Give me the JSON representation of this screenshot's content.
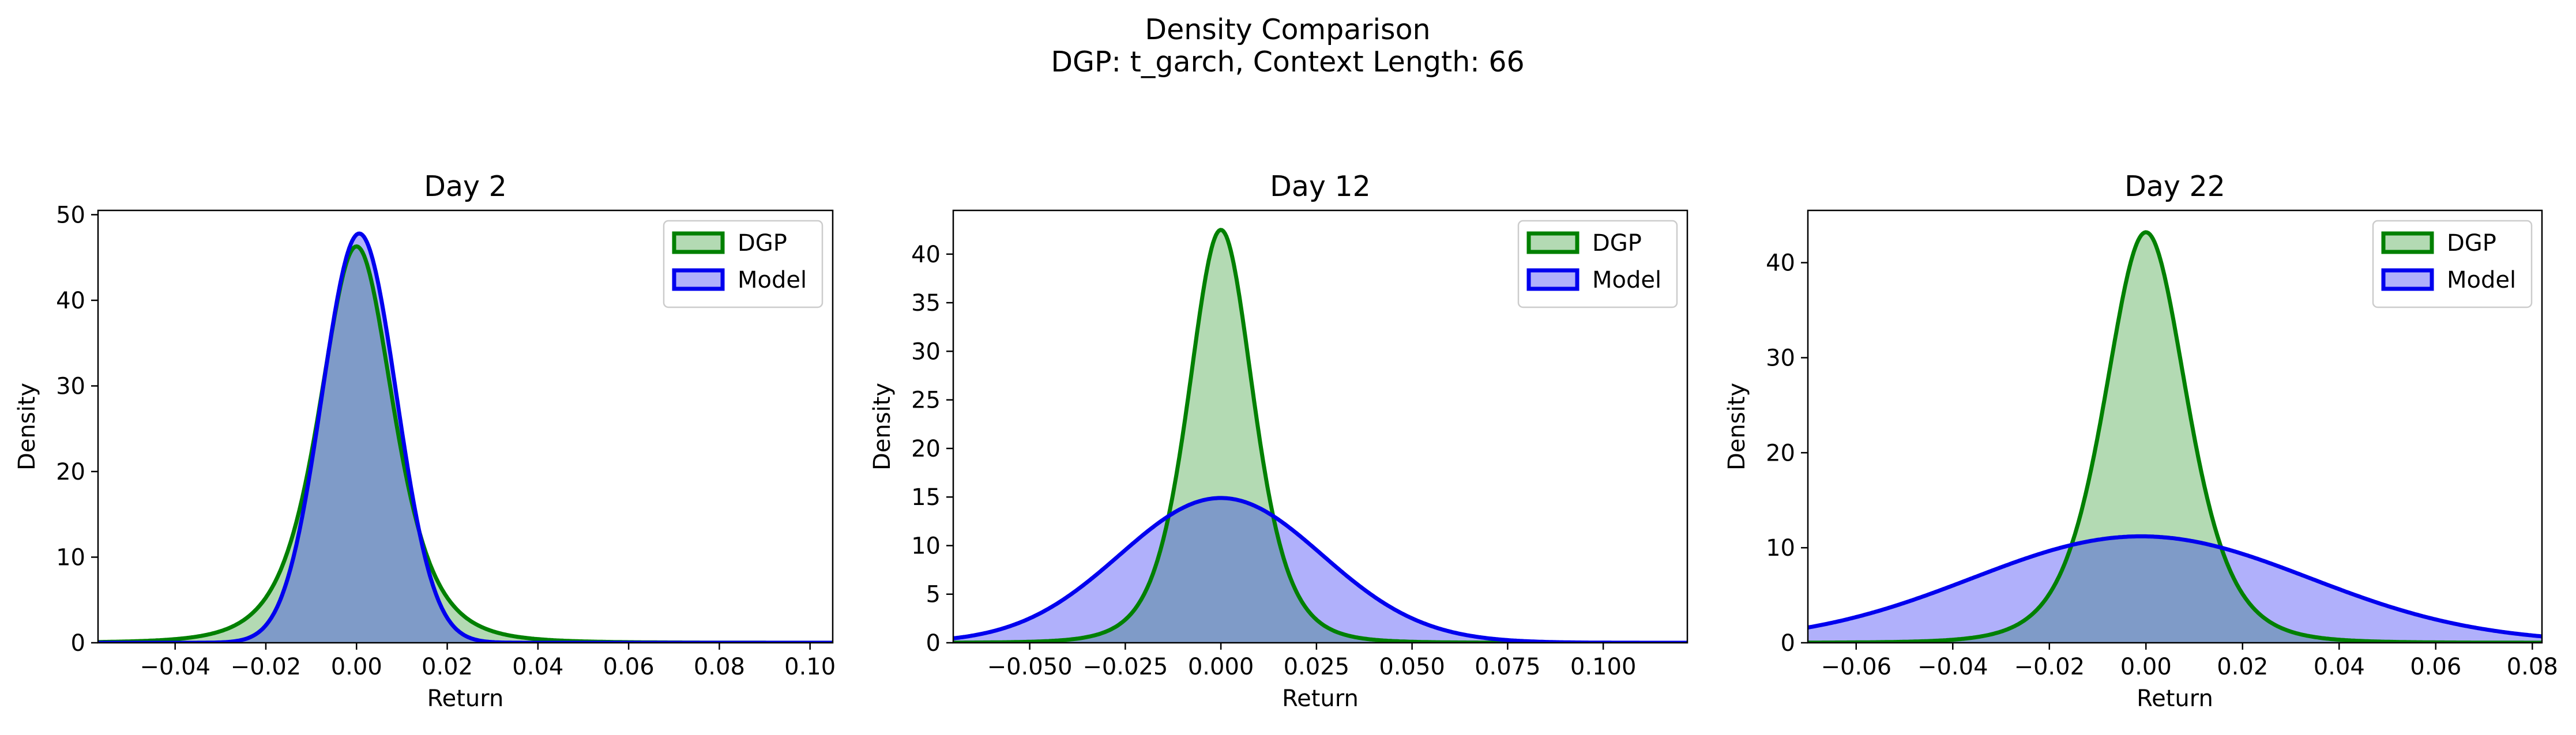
{
  "title": "Density Comparison",
  "subtitle": "DGP: t_garch, Context Length: 66",
  "colors": {
    "dgp_line": "#008000",
    "dgp_fill": "#b3dab3",
    "model_line": "#0000ee",
    "model_fill": "#b0b0fb",
    "overlap_fill": "#7f9bc8"
  },
  "chart_data": [
    {
      "type": "area",
      "title": "Day 2",
      "xlabel": "Return",
      "ylabel": "Density",
      "xlim": [
        -0.057,
        0.105
      ],
      "ylim": [
        0,
        50.5
      ],
      "xticks": [
        -0.04,
        -0.02,
        0.0,
        0.02,
        0.04,
        0.06,
        0.08,
        0.1
      ],
      "xtick_labels": [
        "−0.04",
        "−0.02",
        "0.00",
        "0.02",
        "0.04",
        "0.06",
        "0.08",
        "0.10"
      ],
      "yticks": [
        0,
        10,
        20,
        30,
        40,
        50
      ],
      "ytick_labels": [
        "0",
        "10",
        "20",
        "30",
        "40",
        "50"
      ],
      "legend_position": "top-right",
      "series": [
        {
          "name": "DGP",
          "shape": "student_t",
          "peak": 46.3,
          "center": 0.0,
          "scale": 0.0085,
          "df": 4
        },
        {
          "name": "Model",
          "shape": "gaussian",
          "peak": 47.8,
          "center": 0.0006,
          "sigma": 0.0082
        }
      ]
    },
    {
      "type": "area",
      "title": "Day 12",
      "xlabel": "Return",
      "ylabel": "Density",
      "xlim": [
        -0.07,
        0.122
      ],
      "ylim": [
        0,
        44.5
      ],
      "xticks": [
        -0.05,
        -0.025,
        0.0,
        0.025,
        0.05,
        0.075,
        0.1
      ],
      "xtick_labels": [
        "−0.050",
        "−0.025",
        "0.000",
        "0.025",
        "0.050",
        "0.075",
        "0.100"
      ],
      "yticks": [
        0,
        5,
        10,
        15,
        20,
        25,
        30,
        35,
        40
      ],
      "ytick_labels": [
        "0",
        "5",
        "10",
        "15",
        "20",
        "25",
        "30",
        "35",
        "40"
      ],
      "legend_position": "top-right",
      "series": [
        {
          "name": "DGP",
          "shape": "student_t",
          "peak": 42.5,
          "center": 0.0,
          "scale": 0.0088,
          "df": 5
        },
        {
          "name": "Model",
          "shape": "gaussian",
          "peak": 14.9,
          "center": 0.0,
          "sigma": 0.0265
        }
      ]
    },
    {
      "type": "area",
      "title": "Day 22",
      "xlabel": "Return",
      "ylabel": "Density",
      "xlim": [
        -0.07,
        0.082
      ],
      "ylim": [
        0,
        45.5
      ],
      "xticks": [
        -0.06,
        -0.04,
        -0.02,
        0.0,
        0.02,
        0.04,
        0.06,
        0.08
      ],
      "xtick_labels": [
        "−0.06",
        "−0.04",
        "−0.02",
        "0.00",
        "0.02",
        "0.04",
        "0.06",
        "0.08"
      ],
      "yticks": [
        0,
        10,
        20,
        30,
        40
      ],
      "ytick_labels": [
        "0",
        "10",
        "20",
        "30",
        "40"
      ],
      "legend_position": "top-right",
      "series": [
        {
          "name": "DGP",
          "shape": "student_t",
          "peak": 43.2,
          "center": 0.0,
          "scale": 0.0088,
          "df": 5
        },
        {
          "name": "Model",
          "shape": "gaussian",
          "peak": 11.2,
          "center": -0.001,
          "sigma": 0.035
        }
      ]
    }
  ]
}
